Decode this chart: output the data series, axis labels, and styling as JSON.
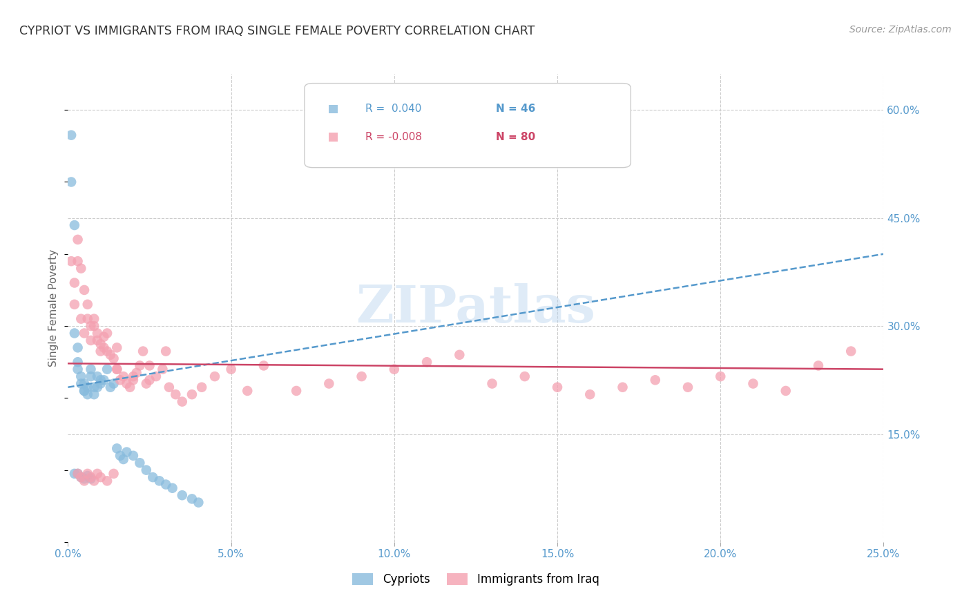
{
  "title": "CYPRIOT VS IMMIGRANTS FROM IRAQ SINGLE FEMALE POVERTY CORRELATION CHART",
  "source": "Source: ZipAtlas.com",
  "ylabel": "Single Female Poverty",
  "xlim": [
    0.0,
    0.25
  ],
  "ylim": [
    0.0,
    0.65
  ],
  "xtick_vals": [
    0.0,
    0.05,
    0.1,
    0.15,
    0.2,
    0.25
  ],
  "xtick_labels": [
    "0.0%",
    "5.0%",
    "10.0%",
    "15.0%",
    "20.0%",
    "25.0%"
  ],
  "ytick_vals": [
    0.15,
    0.3,
    0.45,
    0.6
  ],
  "ytick_labels_right": [
    "15.0%",
    "30.0%",
    "45.0%",
    "60.0%"
  ],
  "color_cypriot": "#88bbdd",
  "color_iraq": "#f4a0b0",
  "color_trend_cypriot": "#5599cc",
  "color_trend_iraq": "#cc4466",
  "watermark": "ZIPatlas",
  "background_color": "#ffffff",
  "grid_color": "#cccccc",
  "right_label_color": "#5599cc",
  "title_color": "#333333",
  "source_color": "#999999",
  "ylabel_color": "#666666",
  "cyp_trend_x0": 0.0,
  "cyp_trend_y0": 0.215,
  "cyp_trend_x1": 0.25,
  "cyp_trend_y1": 0.4,
  "iraq_trend_x0": 0.0,
  "iraq_trend_y0": 0.248,
  "iraq_trend_x1": 0.25,
  "iraq_trend_y1": 0.24,
  "legend_r1": "R =  0.040",
  "legend_n1": "N = 46",
  "legend_r2": "R = -0.008",
  "legend_n2": "N = 80"
}
